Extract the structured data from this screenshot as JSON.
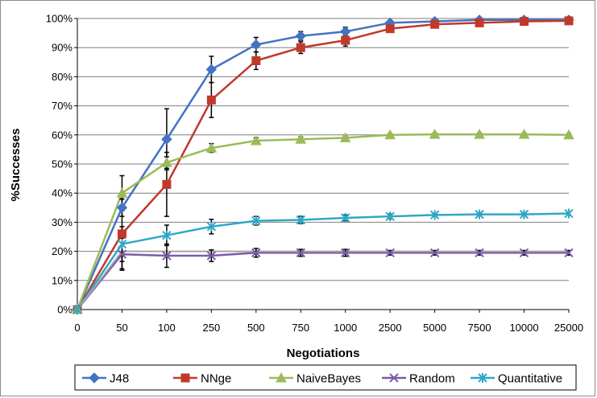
{
  "chart_data": {
    "type": "line",
    "title": "",
    "xlabel": "Negotiations",
    "ylabel": "%Successes",
    "categories": [
      "0",
      "50",
      "100",
      "250",
      "500",
      "750",
      "1000",
      "2500",
      "5000",
      "7500",
      "10000",
      "25000"
    ],
    "ylim": [
      0,
      100
    ],
    "yticks": [
      "0%",
      "10%",
      "20%",
      "30%",
      "40%",
      "50%",
      "60%",
      "70%",
      "80%",
      "90%",
      "100%"
    ],
    "grid": "horizontal",
    "legend_position": "bottom",
    "series": [
      {
        "name": "J48",
        "color": "#4472C4",
        "marker": "diamond",
        "values": [
          0,
          35,
          58.5,
          82.5,
          91,
          94,
          95.5,
          98.5,
          99,
          99.5,
          99.5,
          99.5
        ],
        "errors": [
          0,
          3,
          10.5,
          4.5,
          2.5,
          1.5,
          1.5,
          0.5,
          0.5,
          0.3,
          0.3,
          0.3
        ]
      },
      {
        "name": "NNge",
        "color": "#C0392B",
        "marker": "square",
        "values": [
          0,
          26,
          43,
          72,
          85.5,
          90,
          92.5,
          96.5,
          98,
          98.5,
          99,
          99.2
        ],
        "errors": [
          0,
          12,
          11,
          6,
          3,
          2,
          2,
          1,
          1,
          0.8,
          0.7,
          0.6
        ]
      },
      {
        "name": "NaiveBayes",
        "color": "#9BBB59",
        "marker": "triangle",
        "values": [
          0,
          40,
          50.5,
          55.5,
          58,
          58.5,
          59,
          60,
          60.2,
          60.2,
          60.2,
          60
        ],
        "errors": [
          0,
          6,
          2,
          1.5,
          1,
          0.8,
          0.6,
          0.5,
          0.5,
          0.5,
          0.5,
          0.5
        ]
      },
      {
        "name": "Random",
        "color": "#7B5BA8",
        "marker": "x",
        "values": [
          0,
          19,
          18.5,
          18.5,
          19.5,
          19.5,
          19.5,
          19.5,
          19.5,
          19.5,
          19.5,
          19.5
        ],
        "errors": [
          0,
          5.5,
          4,
          2,
          1.5,
          1.2,
          1.2,
          0.8,
          0.8,
          0.8,
          0.8,
          0.8
        ]
      },
      {
        "name": "Quantitative",
        "color": "#2FA8C6",
        "marker": "star",
        "values": [
          0,
          22.5,
          25.5,
          28.5,
          30.5,
          30.8,
          31.5,
          32,
          32.5,
          32.7,
          32.7,
          33
        ],
        "errors": [
          0,
          6,
          3.5,
          2.5,
          1.5,
          1.2,
          1,
          0.8,
          0.5,
          0.5,
          0.5,
          0.5
        ]
      },
      {
        "name": "",
        "color": "#A6A6A6",
        "marker": "none",
        "values": [
          0,
          20,
          20,
          20,
          20,
          20,
          20,
          20,
          20,
          20,
          20,
          20
        ]
      }
    ]
  }
}
